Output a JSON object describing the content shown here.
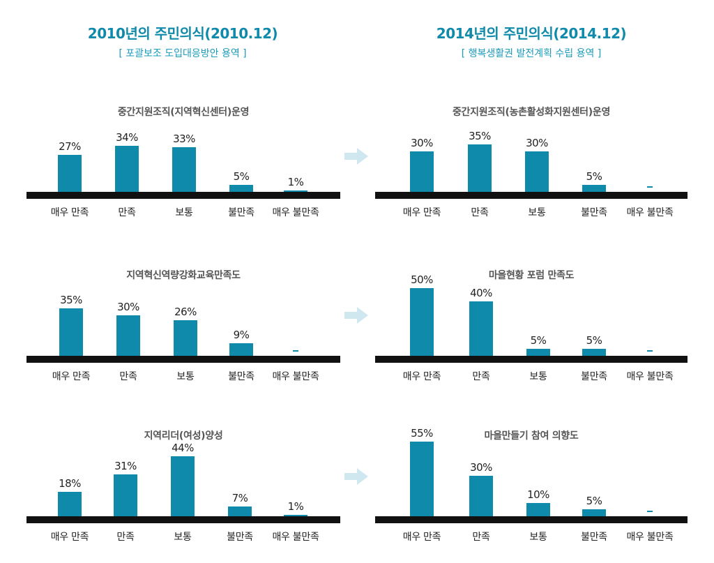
{
  "left_column": {
    "title": "2010년의 주민의식(2010.12)",
    "subtitle": "[ 포괄보조 도입대응방안 용역 ]"
  },
  "right_column": {
    "title": "2014년의 주민의식(2014.12)",
    "subtitle": "[ 행복생활권 발전계획 수립 용역 ]"
  },
  "colors": {
    "bar": "#0f8aaa",
    "baseline": "#111111",
    "arrow": "#cfe8f0"
  },
  "chart_data": [
    {
      "type": "bar",
      "title": "중간지원조직(지역혁신센터)운영",
      "categories": [
        "매우 만족",
        "만족",
        "보통",
        "불만족",
        "매우 불만족"
      ],
      "values": [
        27,
        34,
        33,
        5,
        1
      ],
      "value_labels": [
        "27%",
        "34%",
        "33%",
        "5%",
        "1%"
      ],
      "ylim": [
        0,
        60
      ]
    },
    {
      "type": "bar",
      "title": "중간지원조직(농촌활성화지원센터)운영",
      "categories": [
        "매우 만족",
        "만족",
        "보통",
        "불만족",
        "매우 불만족"
      ],
      "values": [
        30,
        35,
        30,
        5,
        0
      ],
      "value_labels": [
        "30%",
        "35%",
        "30%",
        "5%",
        "-"
      ],
      "ylim": [
        0,
        60
      ]
    },
    {
      "type": "bar",
      "title": "지역혁신역량강화교육만족도",
      "categories": [
        "매우 만족",
        "만족",
        "보통",
        "불만족",
        "매우 불만족"
      ],
      "values": [
        35,
        30,
        26,
        9,
        0
      ],
      "value_labels": [
        "35%",
        "30%",
        "26%",
        "9%",
        "-"
      ],
      "ylim": [
        0,
        60
      ]
    },
    {
      "type": "bar",
      "title": "마을현황 포럼 만족도",
      "categories": [
        "매우 만족",
        "만족",
        "보통",
        "불만족",
        "매우 불만족"
      ],
      "values": [
        50,
        40,
        5,
        5,
        0
      ],
      "value_labels": [
        "50%",
        "40%",
        "5%",
        "5%",
        "-"
      ],
      "ylim": [
        0,
        60
      ]
    },
    {
      "type": "bar",
      "title": "지역리더(여성)양성",
      "categories": [
        "매우 만족",
        "만족",
        "보통",
        "불만족",
        "매우 불만족"
      ],
      "values": [
        18,
        31,
        44,
        7,
        1
      ],
      "value_labels": [
        "18%",
        "31%",
        "44%",
        "7%",
        "1%"
      ],
      "ylim": [
        0,
        60
      ]
    },
    {
      "type": "bar",
      "title": "마을만들기 참여 의향도",
      "categories": [
        "매우 만족",
        "만족",
        "보통",
        "불만족",
        "매우 불만족"
      ],
      "values": [
        55,
        30,
        10,
        5,
        0
      ],
      "value_labels": [
        "55%",
        "30%",
        "10%",
        "5%",
        "-"
      ],
      "ylim": [
        0,
        60
      ]
    }
  ]
}
